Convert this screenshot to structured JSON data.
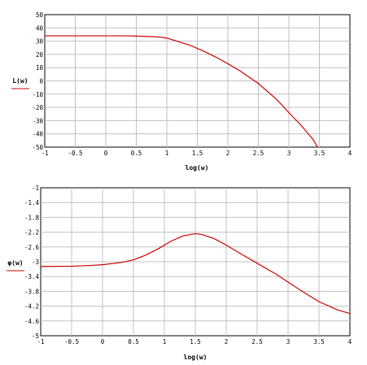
{
  "colors": {
    "curve": "#cc0000",
    "grid": "#c0c0c0",
    "frame": "#000000",
    "background": "#ffffff"
  },
  "chart_data": [
    {
      "type": "line",
      "title": "",
      "xlabel": "log(w)",
      "ylabel": "L(w)",
      "xlim": [
        -1,
        4
      ],
      "ylim": [
        -50,
        50
      ],
      "grid": true,
      "x_ticks": [
        "-1",
        "-0.5",
        "0",
        "0.5",
        "1",
        "1.5",
        "2",
        "2.5",
        "3",
        "3.5",
        "4"
      ],
      "y_ticks": [
        "50",
        "40",
        "30",
        "20",
        "10",
        "0",
        "-10",
        "-20",
        "-30",
        "-40",
        "-50"
      ],
      "series": [
        {
          "x": [
            -1,
            -0.5,
            0,
            0.3,
            0.5,
            0.7,
            0.9,
            1.0,
            1.2,
            1.4,
            1.6,
            1.8,
            2.0,
            2.2,
            2.5,
            2.8,
            3.0,
            3.2,
            3.4,
            3.47
          ],
          "y": [
            34,
            34,
            34,
            34,
            33.8,
            33.5,
            33,
            32.3,
            29.5,
            26.5,
            22.5,
            18,
            13,
            7.5,
            -2,
            -14,
            -24,
            -33.5,
            -44.5,
            -50
          ]
        }
      ]
    },
    {
      "type": "line",
      "title": "",
      "xlabel": "log(w)",
      "ylabel": "φ(w)",
      "xlim": [
        -1,
        4
      ],
      "ylim": [
        -5,
        -1
      ],
      "grid": true,
      "x_ticks": [
        "-1",
        "-0.5",
        "0",
        "0.5",
        "1",
        "1.5",
        "2",
        "2.5",
        "3",
        "3.5",
        "4"
      ],
      "y_ticks": [
        "-1",
        "-1.4",
        "-1.8",
        "-2.2",
        "-2.6",
        "-3",
        "-3.4",
        "-3.8",
        "-4.2",
        "-4.6",
        "-5"
      ],
      "series": [
        {
          "x": [
            -1,
            -0.5,
            -0.2,
            0,
            0.3,
            0.5,
            0.7,
            0.9,
            1.1,
            1.3,
            1.5,
            1.6,
            1.8,
            2.0,
            2.2,
            2.5,
            2.8,
            3.0,
            3.2,
            3.5,
            3.8,
            4.0
          ],
          "y": [
            -3.13,
            -3.12,
            -3.1,
            -3.08,
            -3.02,
            -2.95,
            -2.82,
            -2.65,
            -2.45,
            -2.3,
            -2.24,
            -2.26,
            -2.37,
            -2.55,
            -2.75,
            -3.04,
            -3.33,
            -3.55,
            -3.77,
            -4.08,
            -4.3,
            -4.4
          ]
        }
      ]
    }
  ]
}
